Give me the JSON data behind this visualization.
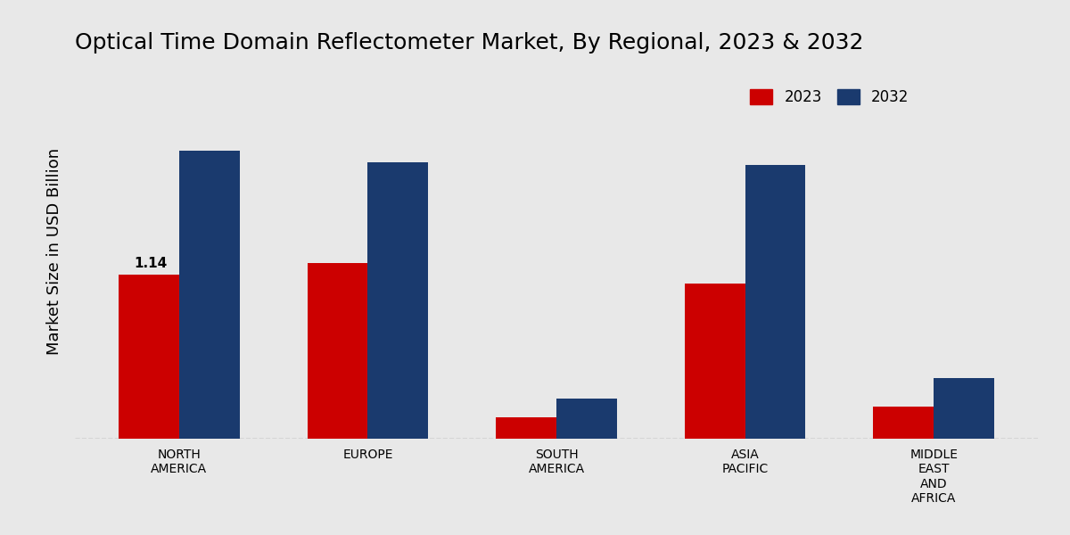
{
  "title": "Optical Time Domain Reflectometer Market, By Regional, 2023 & 2032",
  "ylabel": "Market Size in USD Billion",
  "categories": [
    "NORTH\nAMERICA",
    "EUROPE",
    "SOUTH\nAMERICA",
    "ASIA\nPACIFIC",
    "MIDDLE\nEAST\nAND\nAFRICA"
  ],
  "values_2023": [
    1.14,
    1.22,
    0.15,
    1.08,
    0.22
  ],
  "values_2032": [
    2.0,
    1.92,
    0.28,
    1.9,
    0.42
  ],
  "color_2023": "#cc0000",
  "color_2032": "#1a3a6e",
  "annotation_val": "1.14",
  "annotation_region_idx": 0,
  "background_color": "#e8e8e8",
  "bottom_bar_color": "#cc0000",
  "ylim": [
    0,
    2.6
  ],
  "bar_width": 0.32,
  "legend_labels": [
    "2023",
    "2032"
  ],
  "title_fontsize": 18,
  "axis_label_fontsize": 13,
  "tick_fontsize": 10,
  "legend_fontsize": 12
}
